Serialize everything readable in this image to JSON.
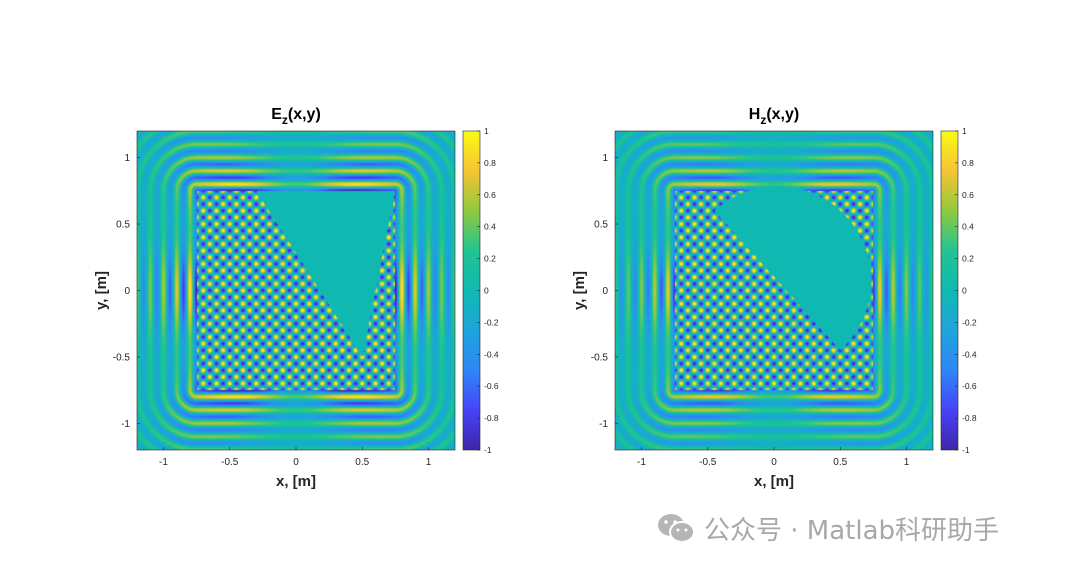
{
  "chart_data": [
    {
      "type": "heatmap",
      "title": "E",
      "title_sub": "z",
      "title_suffix": "(x,y)",
      "xlabel": "x, [m]",
      "ylabel": "y, [m]",
      "xlim": [
        -1.2,
        1.2
      ],
      "ylim": [
        -1.2,
        1.2
      ],
      "xticks": [
        -1,
        -0.5,
        0,
        0.5,
        1
      ],
      "xtick_labels": [
        "-1",
        "-0.5",
        "0",
        "0.5",
        "1"
      ],
      "yticks": [
        -1,
        -0.5,
        0,
        0.5,
        1
      ],
      "ytick_labels": [
        "-1",
        "-0.5",
        "0",
        "0.5",
        "1"
      ],
      "clim": [
        -1,
        1
      ],
      "colorbar_ticks": [
        -1,
        -0.8,
        -0.6,
        -0.4,
        -0.2,
        0,
        0.2,
        0.4,
        0.6,
        0.8,
        1
      ],
      "colorbar_tick_labels": [
        "-1",
        "-0.8",
        "-0.6",
        "-0.4",
        "-0.2",
        "0",
        "0.2",
        "0.4",
        "0.6",
        "0.8",
        "1"
      ],
      "colormap": "parula",
      "colormap_stops": [
        "#3e26a8",
        "#4743f8",
        "#2e87f7",
        "#1fa4dc",
        "#0fb9b1",
        "#22c492",
        "#90c93d",
        "#f5c433",
        "#f9fb15"
      ],
      "region_box": [
        -0.75,
        0.75,
        -0.75,
        0.75
      ],
      "zero_field_shape": "triangle",
      "zero_field_vertices": [
        [
          -0.3,
          0.75
        ],
        [
          0.75,
          0.75
        ],
        [
          0.5,
          -0.5
        ]
      ]
    },
    {
      "type": "heatmap",
      "title": "H",
      "title_sub": "z",
      "title_suffix": "(x,y)",
      "xlabel": "x, [m]",
      "ylabel": "y, [m]",
      "xlim": [
        -1.2,
        1.2
      ],
      "ylim": [
        -1.2,
        1.2
      ],
      "xticks": [
        -1,
        -0.5,
        0,
        0.5,
        1
      ],
      "xtick_labels": [
        "-1",
        "-0.5",
        "0",
        "0.5",
        "1"
      ],
      "yticks": [
        -1,
        -0.5,
        0,
        0.5,
        1
      ],
      "ytick_labels": [
        "-1",
        "-0.5",
        "0",
        "0.5",
        "1"
      ],
      "clim": [
        -1,
        1
      ],
      "colorbar_ticks": [
        -1,
        -0.8,
        -0.6,
        -0.4,
        -0.2,
        0,
        0.2,
        0.4,
        0.6,
        0.8,
        1
      ],
      "colorbar_tick_labels": [
        "-1",
        "-0.8",
        "-0.6",
        "-0.4",
        "-0.2",
        "0",
        "0.2",
        "0.4",
        "0.6",
        "0.8",
        "1"
      ],
      "colormap": "parula",
      "colormap_stops": [
        "#3e26a8",
        "#4743f8",
        "#2e87f7",
        "#1fa4dc",
        "#0fb9b1",
        "#22c492",
        "#90c93d",
        "#f5c433",
        "#f9fb15"
      ],
      "region_box": [
        -0.75,
        0.75,
        -0.75,
        0.75
      ],
      "zero_field_shape": "half-disc",
      "zero_field_vertices": [
        [
          -0.45,
          0.6
        ],
        [
          0.5,
          -0.45
        ],
        [
          0.75,
          0.75
        ]
      ]
    }
  ],
  "watermark": {
    "text": "公众号 · Matlab科研助手",
    "icon": "wechat-icon"
  }
}
